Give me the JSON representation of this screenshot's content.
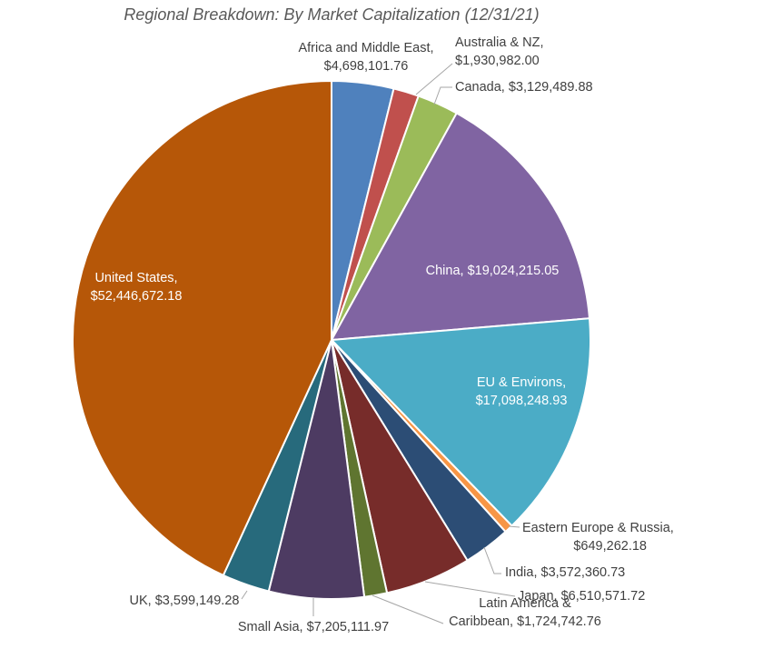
{
  "chart_data": {
    "type": "pie",
    "title": "Regional Breakdown: By Market Capitalization (12/31/21)",
    "slices": [
      {
        "label": "Africa and Middle East",
        "value": 4698101.76,
        "value_label": "$4,698,101.76",
        "color": "#4f81bd"
      },
      {
        "label": "Australia & NZ",
        "value": 1930982.0,
        "value_label": "$1,930,982.00",
        "color": "#c0504d"
      },
      {
        "label": "Canada",
        "value": 3129489.88,
        "value_label": "$3,129,489.88",
        "color": "#9bbb59"
      },
      {
        "label": "China",
        "value": 19024215.05,
        "value_label": "$19,024,215.05",
        "color": "#8064a2"
      },
      {
        "label": "EU & Environs",
        "value": 17098248.93,
        "value_label": "$17,098,248.93",
        "color": "#4bacc6"
      },
      {
        "label": "Eastern Europe & Russia",
        "value": 649262.18,
        "value_label": "$649,262.18",
        "color": "#f79646"
      },
      {
        "label": "India",
        "value": 3572360.73,
        "value_label": "$3,572,360.73",
        "color": "#2c4d75"
      },
      {
        "label": "Japan",
        "value": 6510571.72,
        "value_label": "$6,510,571.72",
        "color": "#772c2a"
      },
      {
        "label": "Latin America & Caribbean",
        "value": 1724742.76,
        "value_label": "$1,724,742.76",
        "color": "#5f7530"
      },
      {
        "label": "Small Asia",
        "value": 7205111.97,
        "value_label": "$7,205,111.97",
        "color": "#4d3b62"
      },
      {
        "label": "UK",
        "value": 3599149.28,
        "value_label": "$3,599,149.28",
        "color": "#276a7c"
      },
      {
        "label": "United States",
        "value": 52446672.18,
        "value_label": "$52,446,672.18",
        "color": "#b65708"
      }
    ]
  }
}
